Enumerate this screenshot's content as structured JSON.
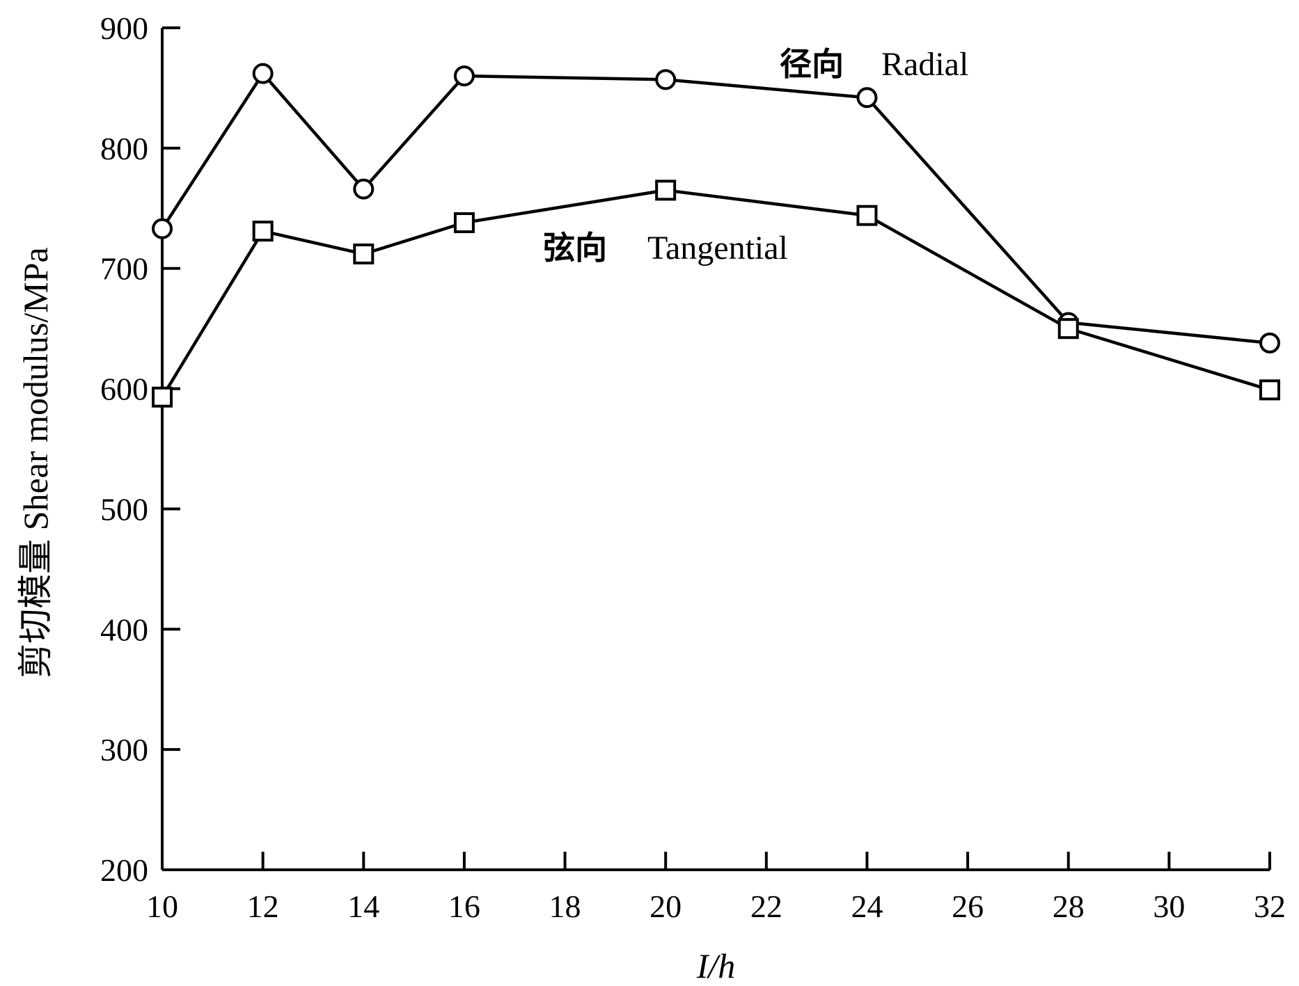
{
  "chart_data": {
    "type": "line",
    "title": "",
    "xlabel": "I/h",
    "ylabel": "剪切模量  Shear modulus/MPa",
    "xlim": [
      10,
      32
    ],
    "ylim": [
      200,
      900
    ],
    "xticks": [
      10,
      12,
      14,
      16,
      18,
      20,
      22,
      24,
      26,
      28,
      30,
      32
    ],
    "yticks": [
      200,
      300,
      400,
      500,
      600,
      700,
      800,
      900
    ],
    "grid": false,
    "series": [
      {
        "name": "径向  Radial",
        "marker": "circle",
        "x": [
          10,
          12,
          14,
          16,
          20,
          24,
          28,
          32
        ],
        "y": [
          733,
          862,
          766,
          860,
          857,
          842,
          655,
          638
        ]
      },
      {
        "name": "弦向  Tangential",
        "marker": "square",
        "x": [
          10,
          12,
          14,
          16,
          20,
          24,
          28,
          32
        ],
        "y": [
          593,
          731,
          712,
          738,
          765,
          744,
          650,
          599
        ]
      }
    ],
    "annotations": [
      {
        "cn": "径向",
        "en": "Radial"
      },
      {
        "cn": "弦向",
        "en": "Tangential"
      }
    ],
    "colors": {
      "line": "#000000",
      "marker_fill": "#ffffff"
    }
  }
}
